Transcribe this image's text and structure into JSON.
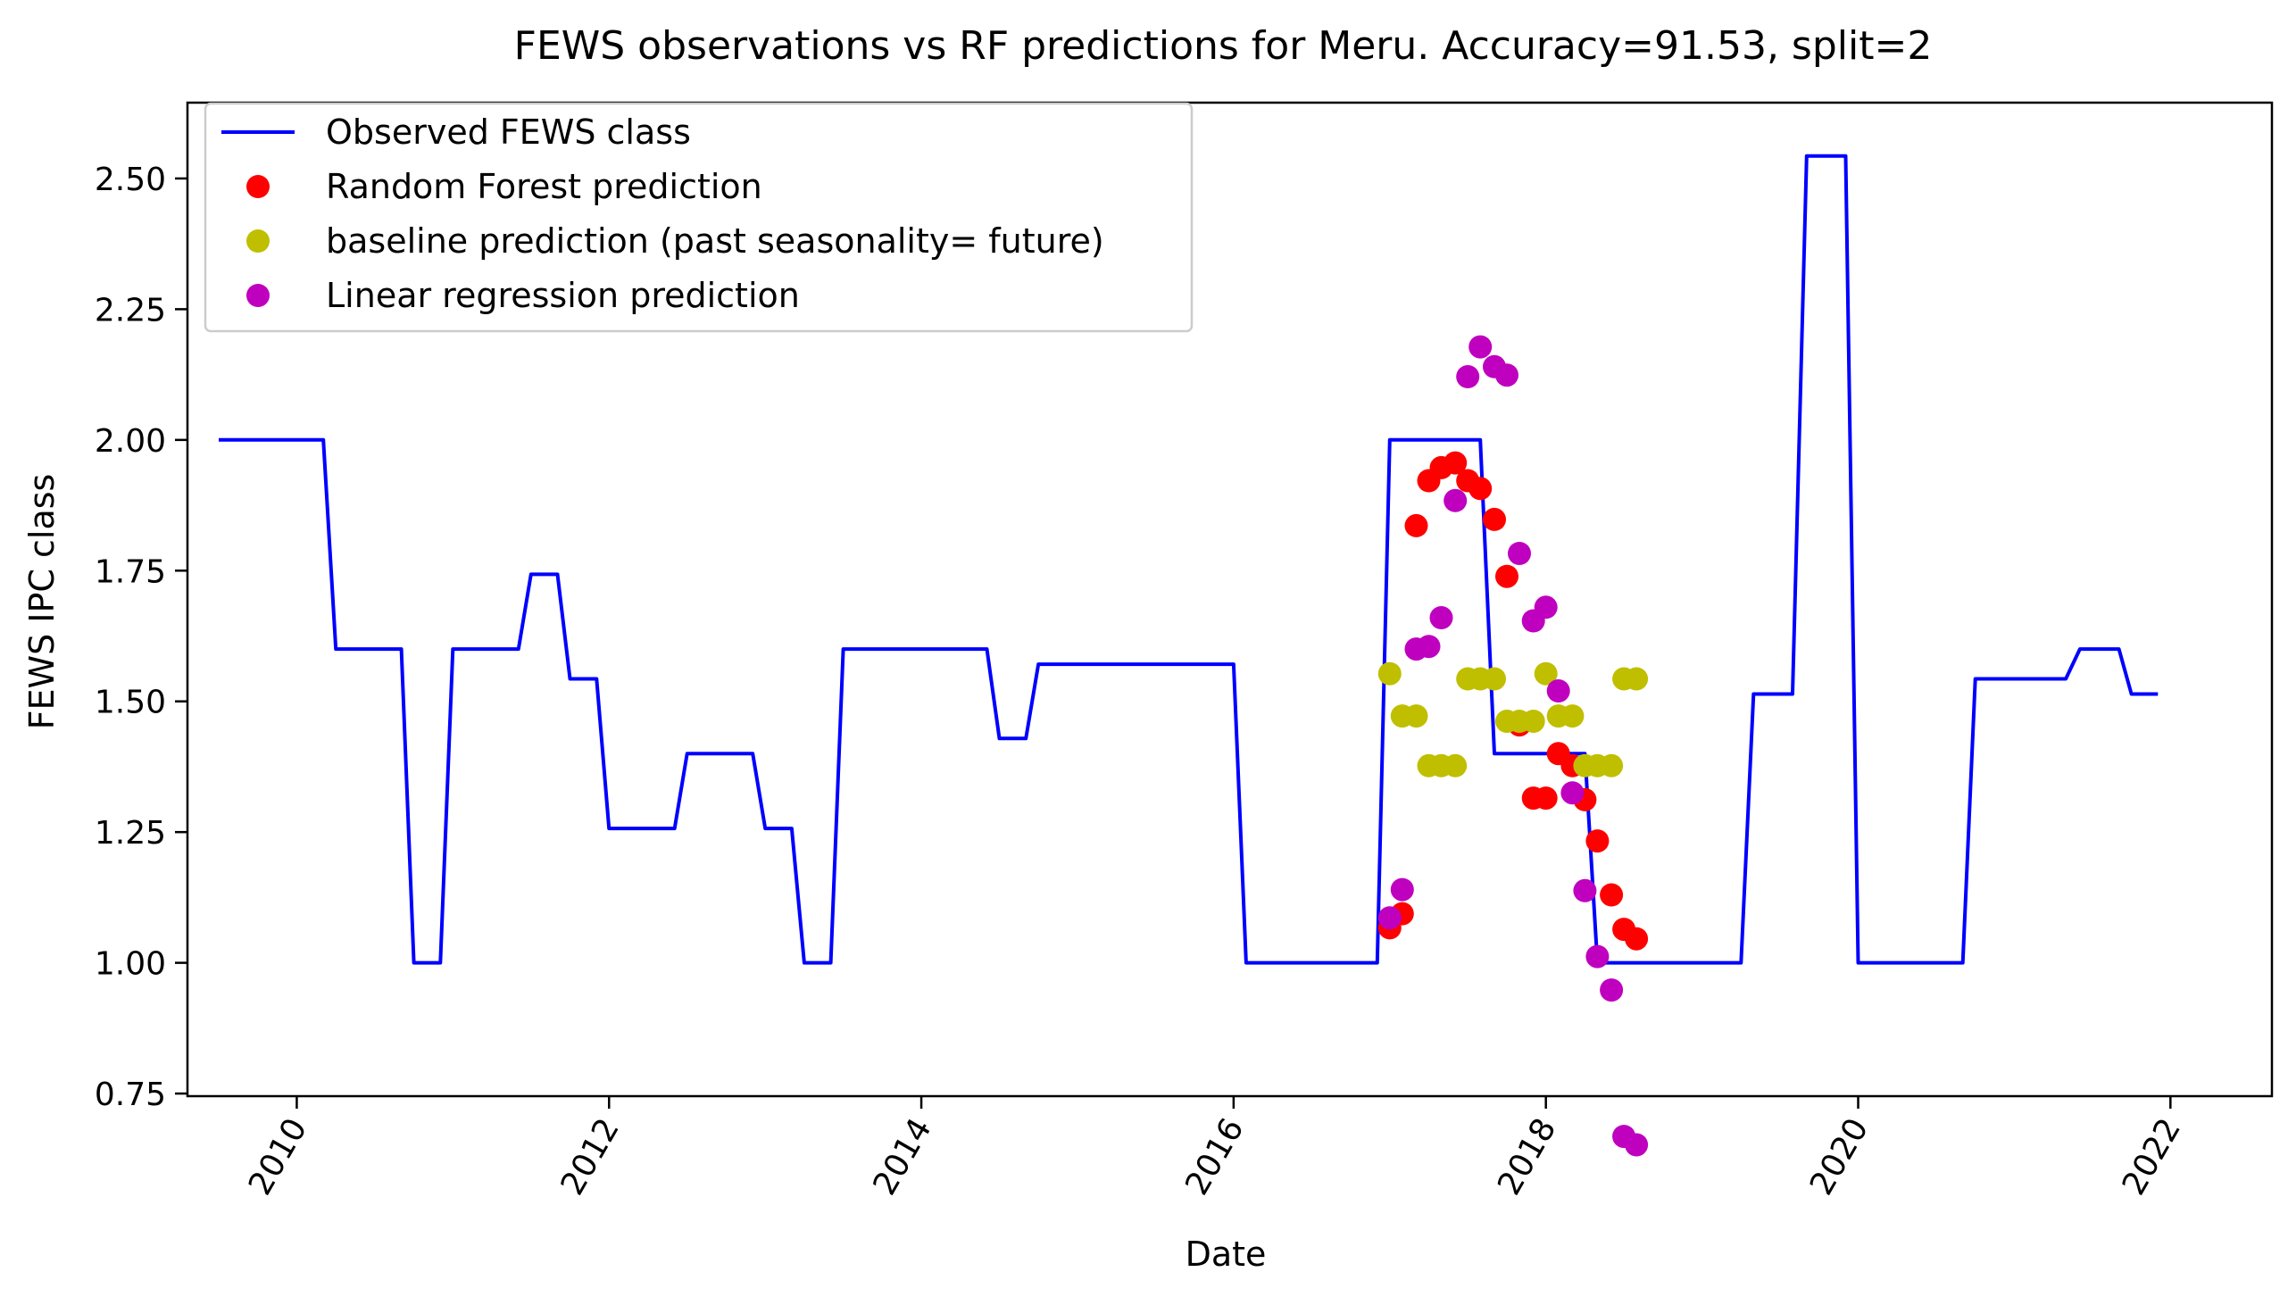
{
  "chart_data": {
    "type": "line",
    "title": "FEWS observations vs RF predictions for Meru. Accuracy=91.53, split=2",
    "xlabel": "Date",
    "ylabel": "FEWS IPC class",
    "xlim": [
      2009.3,
      2022.65
    ],
    "ylim": [
      0.745,
      2.645
    ],
    "xticks": [
      2010,
      2012,
      2014,
      2016,
      2018,
      2020,
      2022
    ],
    "xtick_labels": [
      "2010",
      "2012",
      "2014",
      "2016",
      "2018",
      "2020",
      "2022"
    ],
    "yticks": [
      0.75,
      1.0,
      1.25,
      1.5,
      1.75,
      2.0,
      2.25,
      2.5
    ],
    "ytick_labels": [
      "0.75",
      "1.00",
      "1.25",
      "1.50",
      "1.75",
      "2.00",
      "2.25",
      "2.50"
    ],
    "grid": false,
    "legend_position": "top-left",
    "series": [
      {
        "name": "Observed FEWS class",
        "kind": "line",
        "color": "#0000ff",
        "points": [
          [
            2009.5,
            2.0
          ],
          [
            2010.17,
            2.0
          ],
          [
            2010.25,
            1.6
          ],
          [
            2010.67,
            1.6
          ],
          [
            2010.75,
            1.0
          ],
          [
            2010.92,
            1.0
          ],
          [
            2011.0,
            1.6
          ],
          [
            2011.42,
            1.6
          ],
          [
            2011.5,
            1.743
          ],
          [
            2011.67,
            1.743
          ],
          [
            2011.75,
            1.543
          ],
          [
            2011.92,
            1.543
          ],
          [
            2012.0,
            1.257
          ],
          [
            2012.42,
            1.257
          ],
          [
            2012.5,
            1.4
          ],
          [
            2012.92,
            1.4
          ],
          [
            2013.0,
            1.257
          ],
          [
            2013.17,
            1.257
          ],
          [
            2013.25,
            1.0
          ],
          [
            2013.42,
            1.0
          ],
          [
            2013.5,
            1.6
          ],
          [
            2014.42,
            1.6
          ],
          [
            2014.5,
            1.429
          ],
          [
            2014.67,
            1.429
          ],
          [
            2014.75,
            1.571
          ],
          [
            2016.0,
            1.571
          ],
          [
            2016.08,
            1.0
          ],
          [
            2016.92,
            1.0
          ],
          [
            2017.0,
            2.0
          ],
          [
            2017.58,
            2.0
          ],
          [
            2017.67,
            1.4
          ],
          [
            2018.25,
            1.4
          ],
          [
            2018.33,
            1.0
          ],
          [
            2019.25,
            1.0
          ],
          [
            2019.33,
            1.514
          ],
          [
            2019.58,
            1.514
          ],
          [
            2019.67,
            2.543
          ],
          [
            2019.92,
            2.543
          ],
          [
            2020.0,
            1.0
          ],
          [
            2020.67,
            1.0
          ],
          [
            2020.75,
            1.543
          ],
          [
            2021.33,
            1.543
          ],
          [
            2021.42,
            1.6
          ],
          [
            2021.67,
            1.6
          ],
          [
            2021.75,
            1.514
          ],
          [
            2021.92,
            1.514
          ]
        ]
      },
      {
        "name": "Random Forest prediction",
        "kind": "scatter",
        "color": "#ff0000",
        "points": [
          [
            2017.0,
            1.067
          ],
          [
            2017.08,
            1.094
          ],
          [
            2017.17,
            1.836
          ],
          [
            2017.25,
            1.922
          ],
          [
            2017.33,
            1.947
          ],
          [
            2017.42,
            1.956
          ],
          [
            2017.5,
            1.922
          ],
          [
            2017.58,
            1.907
          ],
          [
            2017.67,
            1.848
          ],
          [
            2017.75,
            1.739
          ],
          [
            2017.83,
            1.455
          ],
          [
            2017.92,
            1.315
          ],
          [
            2018.0,
            1.315
          ],
          [
            2018.08,
            1.4
          ],
          [
            2018.17,
            1.377
          ],
          [
            2018.25,
            1.312
          ],
          [
            2018.33,
            1.233
          ],
          [
            2018.42,
            1.13
          ],
          [
            2018.5,
            1.064
          ],
          [
            2018.58,
            1.046
          ]
        ]
      },
      {
        "name": "baseline prediction (past seasonality= future)",
        "kind": "scatter",
        "color": "#bfbf00",
        "points": [
          [
            2017.0,
            1.553
          ],
          [
            2017.08,
            1.472
          ],
          [
            2017.17,
            1.472
          ],
          [
            2017.25,
            1.377
          ],
          [
            2017.33,
            1.377
          ],
          [
            2017.42,
            1.377
          ],
          [
            2017.5,
            1.543
          ],
          [
            2017.58,
            1.543
          ],
          [
            2017.67,
            1.543
          ],
          [
            2017.75,
            1.462
          ],
          [
            2017.83,
            1.462
          ],
          [
            2017.92,
            1.462
          ],
          [
            2018.0,
            1.553
          ],
          [
            2018.08,
            1.472
          ],
          [
            2018.17,
            1.472
          ],
          [
            2018.25,
            1.377
          ],
          [
            2018.33,
            1.377
          ],
          [
            2018.42,
            1.377
          ],
          [
            2018.5,
            1.543
          ],
          [
            2018.58,
            1.543
          ]
        ]
      },
      {
        "name": "Linear regression prediction",
        "kind": "scatter",
        "color": "#bf00bf",
        "points": [
          [
            2017.0,
            1.086
          ],
          [
            2017.08,
            1.14
          ],
          [
            2017.17,
            1.6
          ],
          [
            2017.25,
            1.605
          ],
          [
            2017.33,
            1.66
          ],
          [
            2017.42,
            1.884
          ],
          [
            2017.5,
            2.121
          ],
          [
            2017.58,
            2.178
          ],
          [
            2017.67,
            2.14
          ],
          [
            2017.75,
            2.124
          ],
          [
            2017.83,
            1.783
          ],
          [
            2017.92,
            1.654
          ],
          [
            2018.0,
            1.68
          ],
          [
            2018.08,
            1.52
          ],
          [
            2018.17,
            1.325
          ],
          [
            2018.25,
            1.138
          ],
          [
            2018.33,
            1.012
          ],
          [
            2018.42,
            0.948
          ],
          [
            2018.5,
            0.668
          ],
          [
            2018.58,
            0.652
          ]
        ]
      }
    ]
  }
}
